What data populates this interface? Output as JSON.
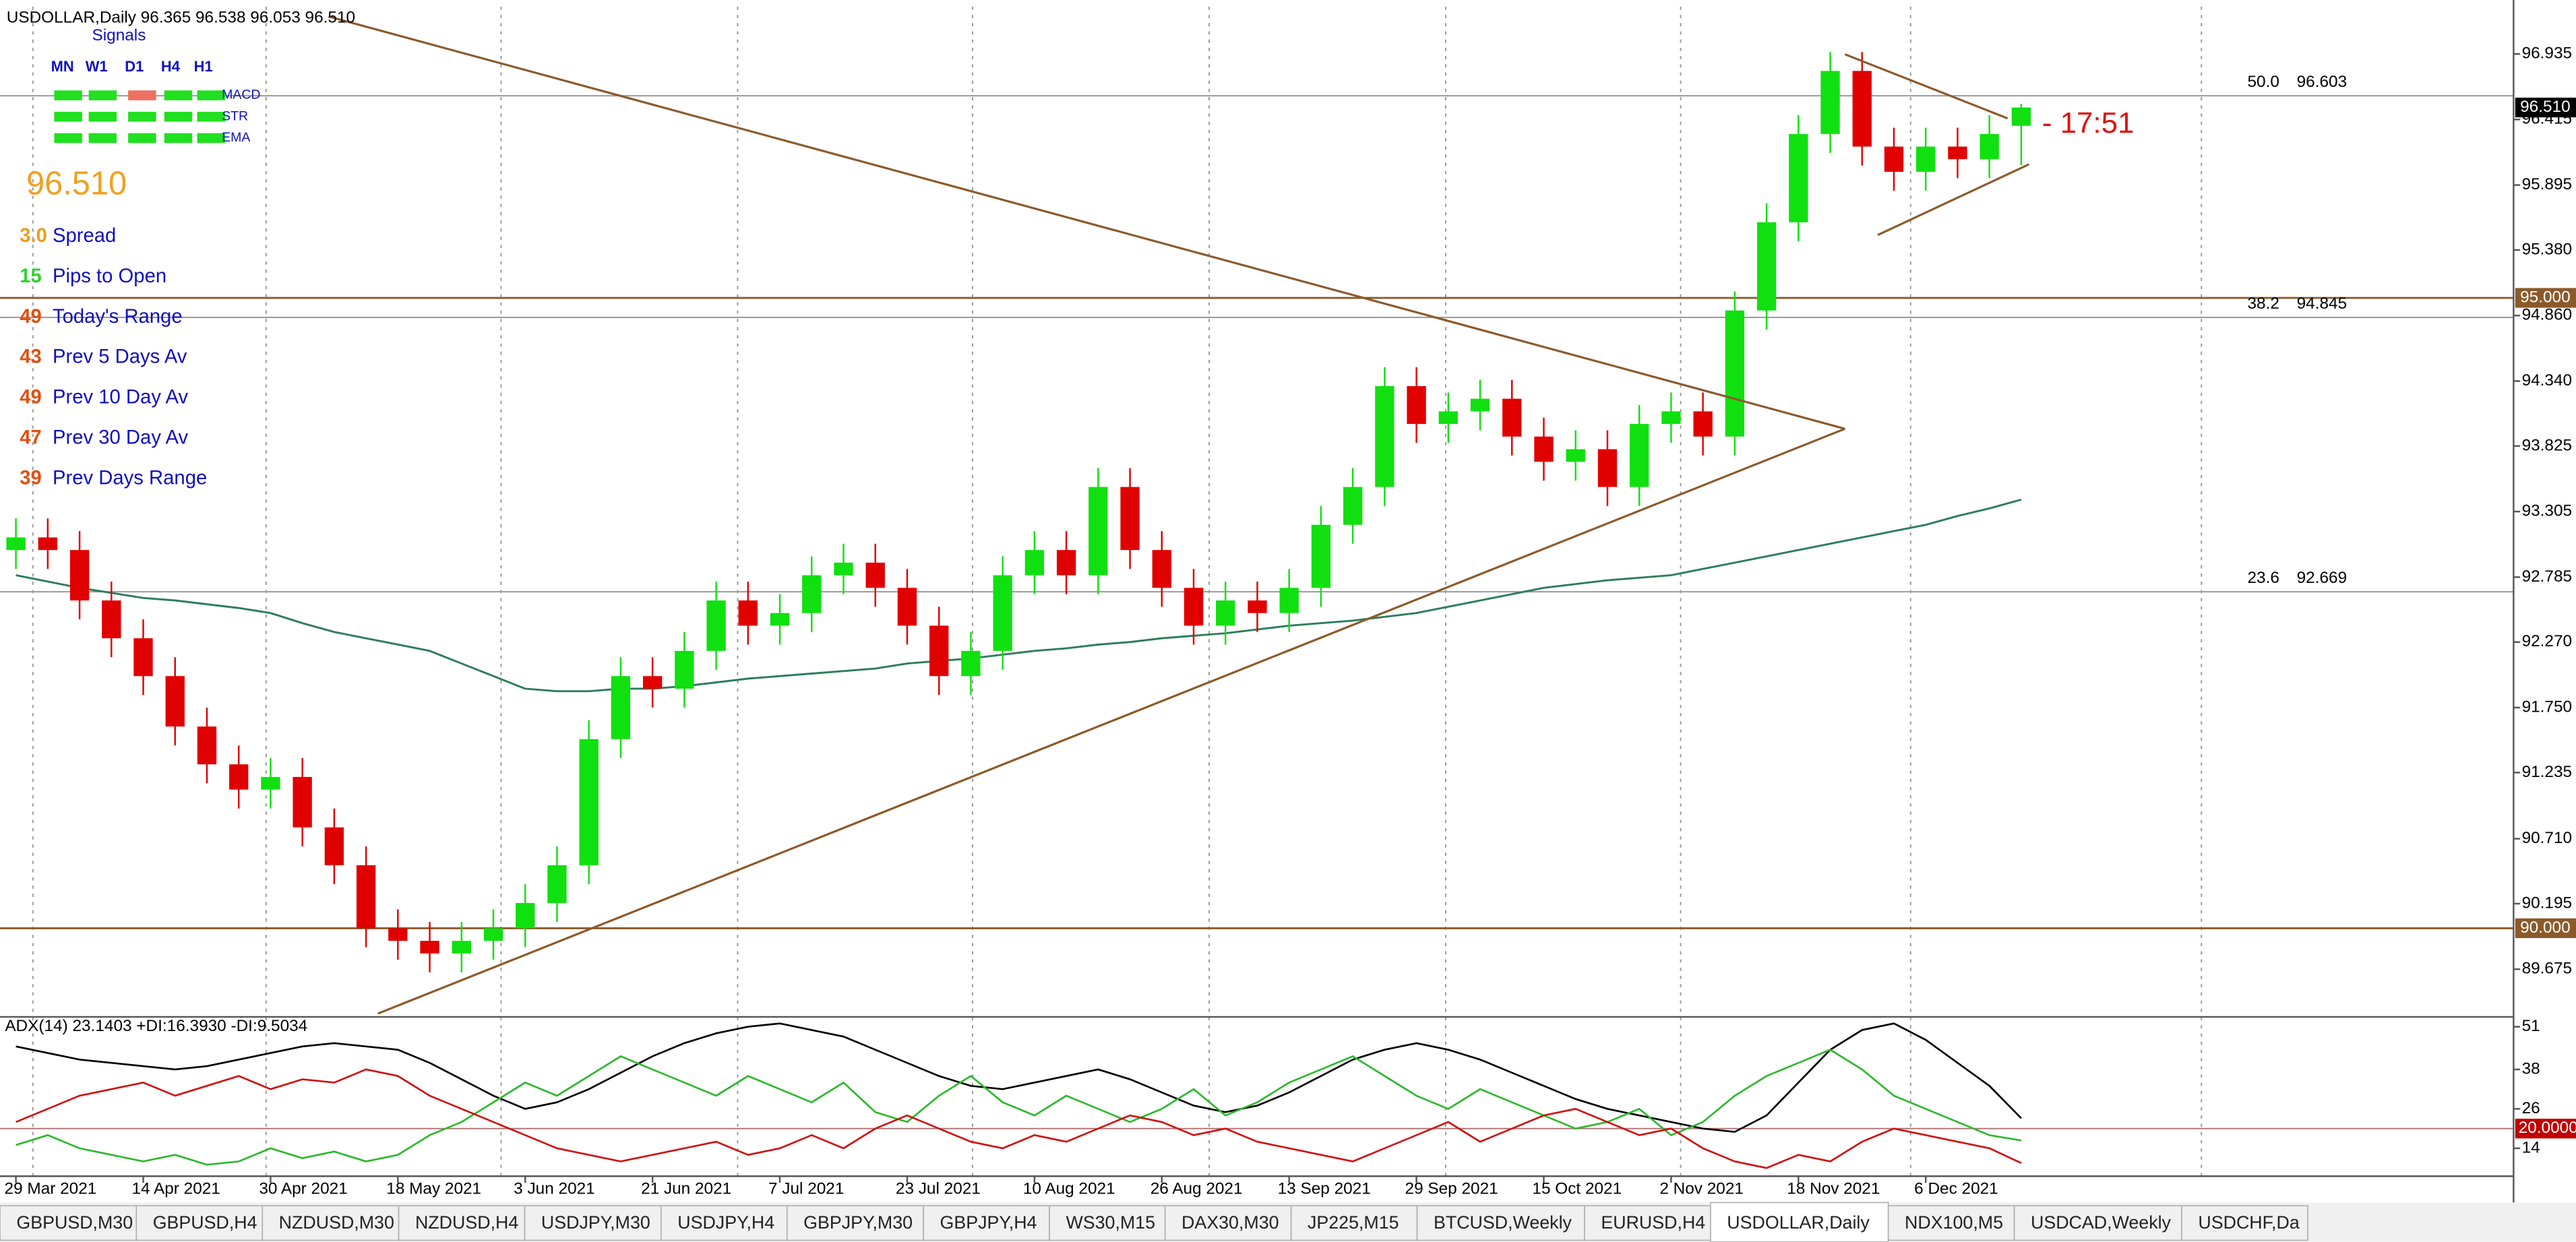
{
  "chart_data": [
    {
      "type": "candlestick",
      "title": "USDOLLAR,Daily  96.365 96.538 96.053 96.510",
      "categories": [
        "29 Mar 2021",
        null,
        null,
        null,
        "14 Apr 2021",
        null,
        null,
        null,
        "30 Apr 2021",
        null,
        null,
        null,
        "18 May 2021",
        null,
        null,
        null,
        "3 Jun 2021",
        null,
        null,
        null,
        "21 Jun 2021",
        null,
        null,
        null,
        "7 Jul 2021",
        null,
        null,
        null,
        "23 Jul 2021",
        null,
        null,
        null,
        "10 Aug 2021",
        null,
        null,
        null,
        "26 Aug 2021",
        null,
        null,
        null,
        "13 Sep 2021",
        null,
        null,
        null,
        "29 Sep 2021",
        null,
        null,
        null,
        "15 Oct 2021",
        null,
        null,
        null,
        "2 Nov 2021",
        null,
        null,
        null,
        "18 Nov 2021",
        null,
        null,
        null,
        "6 Dec 2021",
        null,
        null,
        null
      ],
      "open": [
        93.0,
        93.1,
        93.0,
        92.6,
        92.3,
        92.0,
        91.6,
        91.3,
        91.1,
        91.2,
        90.8,
        90.5,
        90.0,
        89.9,
        89.8,
        89.9,
        90.0,
        90.2,
        90.5,
        91.5,
        92.0,
        91.9,
        92.2,
        92.6,
        92.4,
        92.5,
        92.8,
        92.9,
        92.7,
        92.4,
        92.0,
        92.2,
        92.8,
        93.0,
        92.8,
        93.5,
        93.0,
        92.7,
        92.4,
        92.6,
        92.5,
        92.7,
        93.2,
        93.5,
        94.3,
        94.0,
        94.1,
        94.2,
        93.9,
        93.7,
        93.8,
        93.5,
        94.0,
        94.1,
        93.9,
        94.9,
        95.6,
        96.3,
        96.8,
        96.2,
        96.0,
        96.2,
        96.1,
        96.365
      ],
      "high": [
        93.25,
        93.25,
        93.15,
        92.75,
        92.45,
        92.15,
        91.75,
        91.45,
        91.35,
        91.35,
        90.95,
        90.65,
        90.15,
        90.05,
        90.05,
        90.15,
        90.35,
        90.65,
        91.65,
        92.15,
        92.15,
        92.35,
        92.75,
        92.75,
        92.65,
        92.95,
        93.05,
        93.05,
        92.85,
        92.55,
        92.35,
        92.95,
        93.15,
        93.15,
        93.65,
        93.65,
        93.15,
        92.85,
        92.75,
        92.75,
        92.85,
        93.35,
        93.65,
        94.45,
        94.45,
        94.25,
        94.35,
        94.35,
        94.05,
        93.95,
        93.95,
        94.15,
        94.25,
        94.25,
        95.05,
        95.75,
        96.45,
        96.95,
        96.95,
        96.35,
        96.35,
        96.35,
        96.45,
        96.538
      ],
      "low": [
        92.85,
        92.85,
        92.45,
        92.15,
        91.85,
        91.45,
        91.15,
        90.95,
        90.95,
        90.65,
        90.35,
        89.85,
        89.75,
        89.65,
        89.65,
        89.75,
        89.85,
        90.05,
        90.35,
        91.35,
        91.75,
        91.75,
        92.05,
        92.25,
        92.25,
        92.35,
        92.65,
        92.55,
        92.25,
        91.85,
        91.85,
        92.05,
        92.65,
        92.65,
        92.65,
        92.85,
        92.55,
        92.25,
        92.25,
        92.35,
        92.35,
        92.55,
        93.05,
        93.35,
        93.85,
        93.85,
        93.95,
        93.75,
        93.55,
        93.55,
        93.35,
        93.35,
        93.85,
        93.75,
        93.75,
        94.75,
        95.45,
        96.15,
        96.05,
        95.85,
        95.85,
        95.95,
        95.95,
        96.053
      ],
      "close": [
        93.1,
        93.0,
        92.6,
        92.3,
        92.0,
        91.6,
        91.3,
        91.1,
        91.2,
        90.8,
        90.5,
        90.0,
        89.9,
        89.8,
        89.9,
        90.0,
        90.2,
        90.5,
        91.5,
        92.0,
        91.9,
        92.2,
        92.6,
        92.4,
        92.5,
        92.8,
        92.9,
        92.7,
        92.4,
        92.0,
        92.2,
        92.8,
        93.0,
        92.8,
        93.5,
        93.0,
        92.7,
        92.4,
        92.6,
        92.5,
        92.7,
        93.2,
        93.5,
        94.3,
        94.0,
        94.1,
        94.2,
        93.9,
        93.7,
        93.8,
        93.5,
        94.0,
        94.1,
        93.9,
        94.9,
        95.6,
        96.3,
        96.8,
        96.2,
        96.0,
        96.2,
        96.1,
        96.3,
        96.51
      ],
      "up_color": "#10e010",
      "down_color": "#e00000",
      "ylim": [
        89.31,
        97.31
      ],
      "yticks": [
        96.935,
        96.415,
        95.895,
        {
          "value": 95.38,
          "label": "95.380"
        },
        {
          "value": 94.86,
          "label": "94.860"
        },
        {
          "value": 94.34,
          "label": "94.340"
        },
        93.825,
        93.305,
        92.785,
        {
          "value": 92.27,
          "label": "92.270"
        },
        {
          "value": 91.75,
          "label": "91.750"
        },
        91.235,
        {
          "value": 90.71,
          "label": "90.710"
        },
        90.195,
        89.675
      ],
      "overlays": [
        {
          "color": "#2e7d5b",
          "values": [
            92.8,
            92.75,
            92.7,
            92.66,
            92.62,
            92.6,
            92.57,
            92.54,
            92.5,
            92.42,
            92.35,
            92.3,
            92.25,
            92.2,
            92.1,
            92.0,
            91.9,
            91.88,
            91.88,
            91.9,
            91.9,
            91.92,
            91.95,
            91.98,
            92.0,
            92.02,
            92.04,
            92.06,
            92.1,
            92.12,
            92.14,
            92.17,
            92.2,
            92.22,
            92.25,
            92.27,
            92.3,
            92.32,
            92.34,
            92.37,
            92.4,
            92.42,
            92.44,
            92.47,
            92.5,
            92.55,
            92.6,
            92.65,
            92.7,
            92.73,
            92.76,
            92.78,
            92.8,
            92.85,
            92.9,
            92.95,
            93.0,
            93.05,
            93.1,
            93.15,
            93.2,
            93.27,
            93.33,
            93.4
          ]
        }
      ],
      "levels": [
        {
          "value": 95,
          "label": "95.000",
          "color": "#8b5a2b"
        },
        {
          "value": 90,
          "label": "90.000",
          "color": "#8b5a2b"
        }
      ],
      "fib_levels": [
        {
          "level": "50.0",
          "value": 96.603
        },
        {
          "level": "38.2",
          "value": 94.845
        },
        {
          "level": "23.6",
          "value": 92.669
        }
      ],
      "current_price": {
        "value": 96.51,
        "label": "96.510"
      },
      "annotation": "- 17:51"
    },
    {
      "type": "line",
      "title": "ADX(14) 23.1403 +DI:16.3930 -DI:9.5034",
      "ylim": [
        5.5,
        53.5
      ],
      "yticks": [
        51,
        38,
        26,
        14
      ],
      "level": {
        "value": 20,
        "label": "20.0000"
      },
      "series": [
        {
          "color": "#000000",
          "values": [
            45,
            43,
            41,
            40,
            39,
            38,
            39,
            41,
            43,
            45,
            46,
            45,
            44,
            40,
            35,
            30,
            26,
            28,
            32,
            37,
            42,
            46,
            49,
            51,
            52,
            50,
            48,
            44,
            40,
            36,
            33,
            32,
            34,
            36,
            38,
            35,
            31,
            27,
            25,
            27,
            31,
            36,
            41,
            44,
            46,
            44,
            41,
            37,
            33,
            29,
            26,
            24,
            22,
            20,
            19,
            24,
            34,
            44,
            50,
            52,
            47,
            40,
            33,
            23.1403
          ]
        },
        {
          "color": "#2db82d",
          "values": [
            15,
            18,
            14,
            12,
            10,
            12,
            9,
            10,
            14,
            11,
            13,
            10,
            12,
            18,
            22,
            28,
            34,
            30,
            36,
            42,
            38,
            34,
            30,
            36,
            32,
            28,
            34,
            25,
            22,
            30,
            36,
            28,
            24,
            30,
            26,
            22,
            26,
            32,
            24,
            28,
            34,
            38,
            42,
            36,
            30,
            26,
            32,
            28,
            24,
            20,
            22,
            26,
            18,
            22,
            30,
            36,
            40,
            44,
            38,
            30,
            26,
            22,
            18,
            16.393
          ]
        },
        {
          "color": "#d01010",
          "values": [
            22,
            26,
            30,
            32,
            34,
            30,
            33,
            36,
            32,
            35,
            34,
            38,
            36,
            30,
            26,
            22,
            18,
            14,
            12,
            10,
            12,
            14,
            16,
            12,
            14,
            18,
            14,
            20,
            24,
            20,
            16,
            14,
            18,
            16,
            20,
            24,
            22,
            18,
            20,
            16,
            14,
            12,
            10,
            14,
            18,
            22,
            16,
            20,
            24,
            26,
            22,
            18,
            20,
            14,
            10,
            8,
            12,
            10,
            16,
            20,
            18,
            16,
            14,
            9.5034
          ]
        }
      ]
    }
  ],
  "signals": {
    "title": "Signals",
    "columns": [
      "MN",
      "W1",
      "D1",
      "H4",
      "H1"
    ],
    "rows": [
      {
        "name": "MACD",
        "colors": [
          "#20e020",
          "#20e020",
          "#f07060",
          "#20e020",
          "#20e020"
        ]
      },
      {
        "name": "STR",
        "colors": [
          "#20e020",
          "#20e020",
          "#20e020",
          "#20e020",
          "#20e020"
        ]
      },
      {
        "name": "EMA",
        "colors": [
          "#20e020",
          "#20e020",
          "#20e020",
          "#20e020",
          "#20e020"
        ]
      }
    ]
  },
  "stats": [
    {
      "value": "3.0",
      "label": "Spread",
      "color": "#e8a020"
    },
    {
      "value": "15",
      "label": "Pips to Open",
      "color": "#30d030"
    },
    {
      "value": "49",
      "label": "Today's Range",
      "color": "#e05010"
    },
    {
      "value": "43",
      "label": "Prev 5 Days Av",
      "color": "#e05010"
    },
    {
      "value": "49",
      "label": "Prev 10 Day Av",
      "color": "#e05010"
    },
    {
      "value": "47",
      "label": "Prev 30 Day Av",
      "color": "#e05010"
    },
    {
      "value": "39",
      "label": "Prev Days Range",
      "color": "#e05010"
    }
  ],
  "tabs": [
    "GBPUSD,M30",
    "GBPUSD,H4",
    "NZDUSD,M30",
    "NZDUSD,H4",
    "USDJPY,M30",
    "USDJPY,H4",
    "GBPJPY,M30",
    "GBPJPY,H4",
    "WS30,M15",
    "DAX30,M30",
    "JP225,M15",
    "BTCUSD,Weekly",
    "EURUSD,H4",
    "USDOLLAR,Daily",
    "NDX100,M5",
    "USDCAD,Weekly",
    "USDCHF,Da"
  ],
  "active_tab": 13
}
